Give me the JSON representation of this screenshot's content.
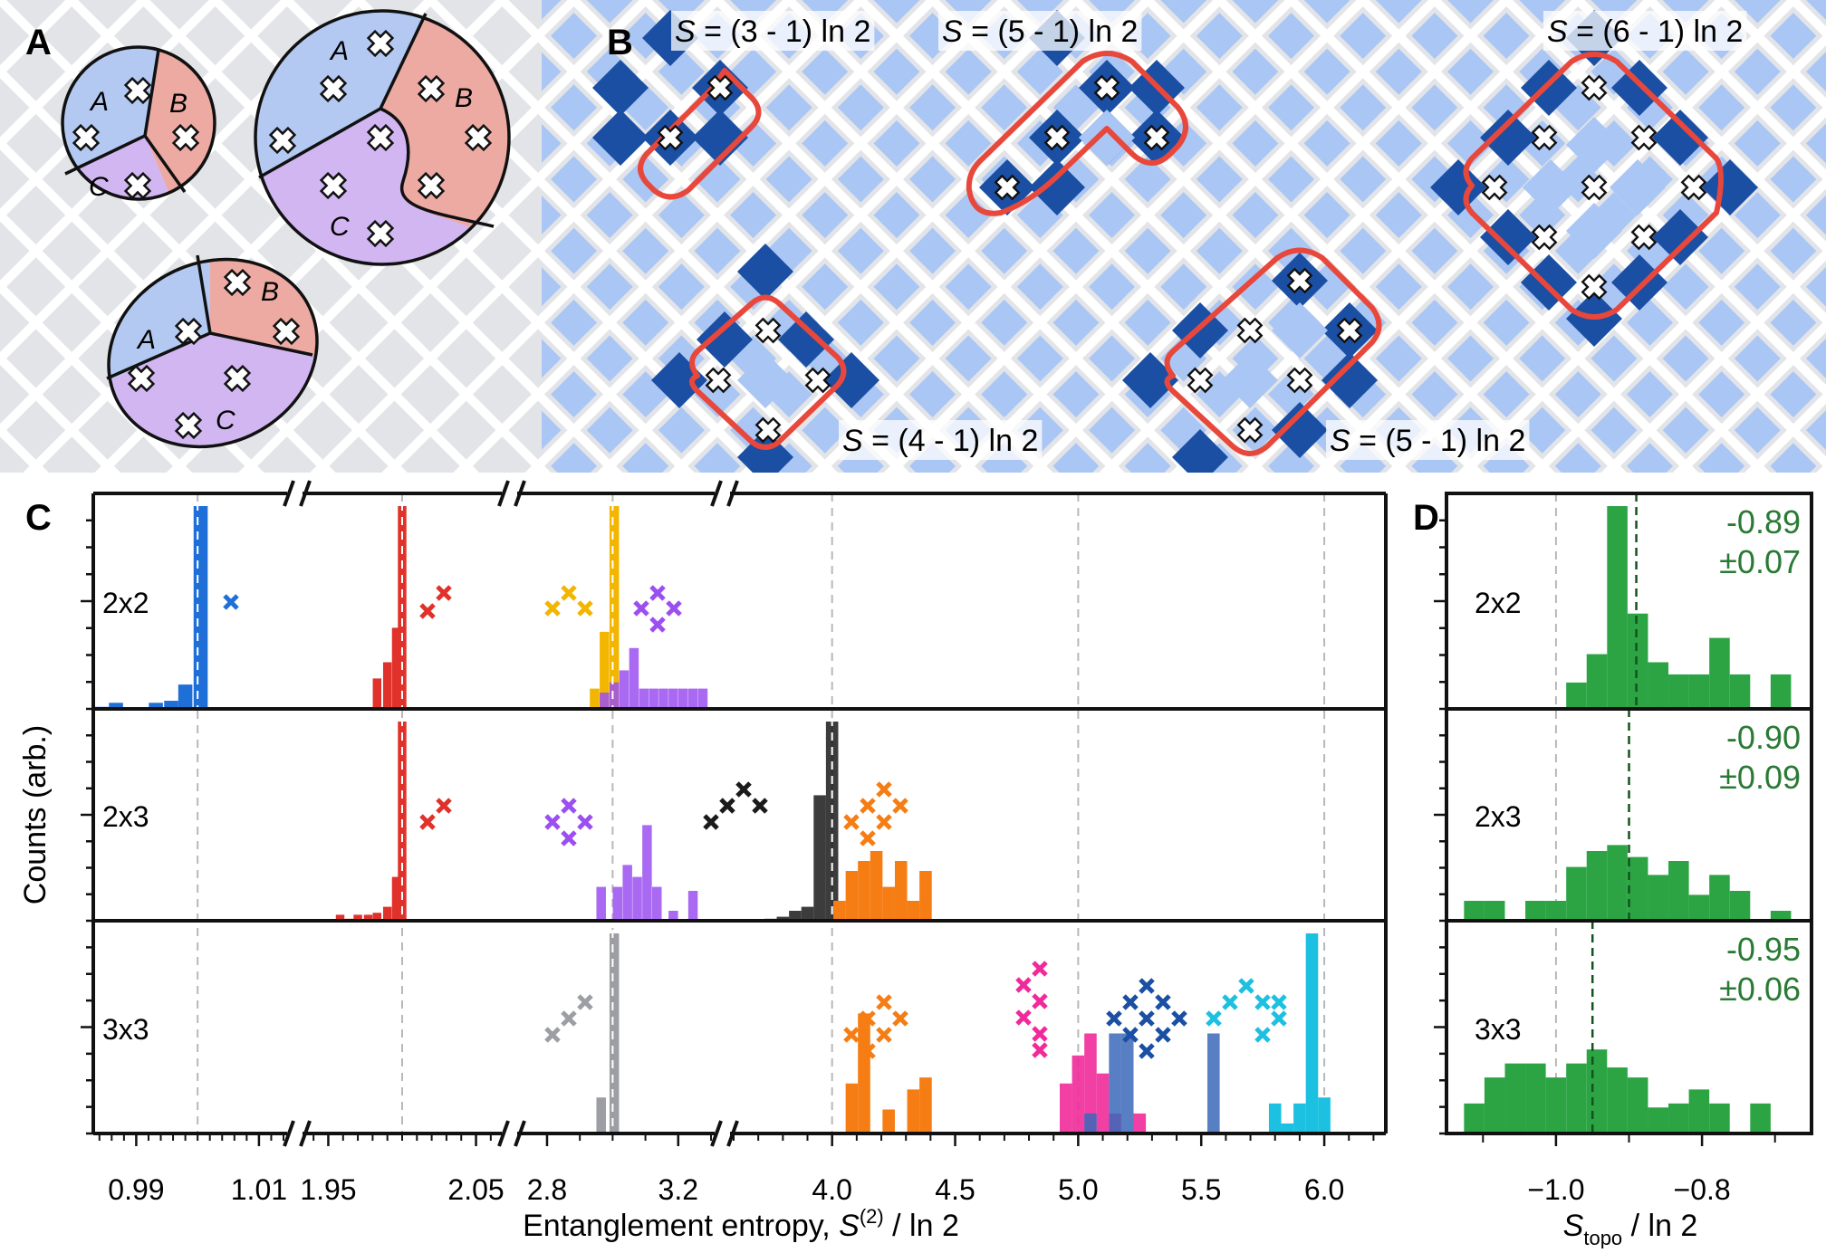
{
  "panel_labels": {
    "A": "A",
    "B": "B",
    "C": "C",
    "D": "D"
  },
  "panel_a": {
    "regions": {
      "a": "A",
      "b": "B",
      "c": "C"
    },
    "colors": {
      "a": "#b3c9f2",
      "b": "#ecaaa3",
      "c": "#d2b6f2"
    }
  },
  "panel_b": {
    "formulas": [
      {
        "italic": "S",
        "text": " = (3 - 1) ln 2"
      },
      {
        "italic": "S",
        "text": " = (5 - 1) ln 2"
      },
      {
        "italic": "S",
        "text": " = (6 - 1) ln 2"
      },
      {
        "italic": "S",
        "text": " = (4 - 1) ln 2"
      },
      {
        "italic": "S",
        "text": " = (5 - 1) ln 2"
      }
    ],
    "colors": {
      "lattice_light": "#aac6f4",
      "lattice_dark": "#1a4fa3",
      "outline": "#e8473b"
    }
  },
  "chart_data": [
    {
      "panel": "C",
      "type": "bar",
      "xlabel": "Entanglement entropy, S^(2) / ln 2",
      "ylabel": "Counts (arb.)",
      "rows": [
        "2x2",
        "2x3",
        "3x3"
      ],
      "grid": "vertical dashed reference lines at integer entropy values",
      "x_segments": [
        {
          "range": [
            0.983,
            1.014
          ],
          "ticks": [
            0.99,
            1.01
          ],
          "tick_labels": [
            "0.99",
            "1.01"
          ],
          "reference": 1.0
        },
        {
          "range": [
            1.935,
            2.065
          ],
          "ticks": [
            1.95,
            2.05
          ],
          "tick_labels": [
            "1.95",
            "2.05"
          ],
          "reference": 2.0
        },
        {
          "range": [
            2.72,
            3.3
          ],
          "ticks": [
            2.8,
            3.2
          ],
          "tick_labels": [
            "2.8",
            "3.2"
          ],
          "reference": 3.0
        },
        {
          "range": [
            3.6,
            6.25
          ],
          "ticks": [
            4.0,
            4.5,
            5.0,
            5.5,
            6.0
          ],
          "tick_labels": [
            "4.0",
            "4.5",
            "5.0",
            "5.5",
            "6.0"
          ],
          "references": [
            4.0,
            5.0,
            6.0
          ]
        }
      ],
      "series": [
        {
          "row": 0,
          "segment": 0,
          "color": "#1f6fd8",
          "alpha": 1,
          "bars": [
            [
              0.9843,
              0.01
            ],
            [
              0.9867,
              0.03
            ],
            [
              0.9932,
              0.03
            ],
            [
              0.9957,
              0.04
            ],
            [
              0.998,
              0.12
            ],
            [
              1.0005,
              1.0
            ]
          ]
        },
        {
          "row": 0,
          "segment": 1,
          "color": "#e0322b",
          "alpha": 1,
          "bars": [
            [
              1.983,
              0.15
            ],
            [
              1.99,
              0.23
            ],
            [
              1.996,
              0.4
            ],
            [
              2.0,
              1.0
            ]
          ]
        },
        {
          "row": 0,
          "segment": 2,
          "color": "#f2b500",
          "alpha": 1,
          "bars": [
            [
              2.945,
              0.1
            ],
            [
              2.975,
              0.38
            ],
            [
              3.005,
              1.0
            ]
          ]
        },
        {
          "row": 0,
          "segment": 2,
          "color": "#9b4ff0",
          "alpha": 0.85,
          "bars": [
            [
              2.975,
              0.08
            ],
            [
              3.005,
              0.13
            ],
            [
              3.035,
              0.19
            ],
            [
              3.065,
              0.3
            ],
            [
              3.095,
              0.1
            ],
            [
              3.125,
              0.1
            ],
            [
              3.155,
              0.1
            ],
            [
              3.185,
              0.1
            ],
            [
              3.215,
              0.1
            ],
            [
              3.245,
              0.1
            ],
            [
              3.275,
              0.1
            ]
          ]
        },
        {
          "row": 1,
          "segment": 1,
          "color": "#e0322b",
          "alpha": 1,
          "bars": [
            [
              1.958,
              0.03
            ],
            [
              1.964,
              0.01
            ],
            [
              1.97,
              0.03
            ],
            [
              1.977,
              0.03
            ],
            [
              1.983,
              0.04
            ],
            [
              1.99,
              0.07
            ],
            [
              1.996,
              0.22
            ],
            [
              2.0,
              1.0
            ]
          ]
        },
        {
          "row": 1,
          "segment": 2,
          "color": "#9b4ff0",
          "alpha": 0.85,
          "bars": [
            [
              2.965,
              0.17
            ],
            [
              3.015,
              0.17
            ],
            [
              3.045,
              0.28
            ],
            [
              3.075,
              0.22
            ],
            [
              3.105,
              0.48
            ],
            [
              3.135,
              0.17
            ],
            [
              3.185,
              0.05
            ],
            [
              3.245,
              0.15
            ]
          ]
        },
        {
          "row": 1,
          "segment": 3,
          "color": "#1a1a1a",
          "alpha": 0.85,
          "bars": [
            [
              3.75,
              0.01
            ],
            [
              3.8,
              0.02
            ],
            [
              3.85,
              0.05
            ],
            [
              3.9,
              0.07
            ],
            [
              3.95,
              0.63
            ],
            [
              4.0,
              1.0
            ]
          ]
        },
        {
          "row": 1,
          "segment": 3,
          "color": "#f57d14",
          "alpha": 1,
          "bars": [
            [
              4.03,
              0.1
            ],
            [
              4.08,
              0.25
            ],
            [
              4.13,
              0.3
            ],
            [
              4.18,
              0.35
            ],
            [
              4.23,
              0.17
            ],
            [
              4.28,
              0.3
            ],
            [
              4.33,
              0.1
            ],
            [
              4.38,
              0.25
            ]
          ]
        },
        {
          "row": 2,
          "segment": 2,
          "color": "#9c9ea3",
          "alpha": 1,
          "bars": [
            [
              2.965,
              0.18
            ],
            [
              3.005,
              1.0
            ]
          ]
        },
        {
          "row": 2,
          "segment": 3,
          "color": "#f57d14",
          "alpha": 1,
          "bars": [
            [
              4.08,
              0.25
            ],
            [
              4.13,
              0.6
            ],
            [
              4.23,
              0.12
            ],
            [
              4.33,
              0.22
            ],
            [
              4.38,
              0.28
            ]
          ]
        },
        {
          "row": 2,
          "segment": 3,
          "color": "#f02a9a",
          "alpha": 0.9,
          "bars": [
            [
              4.95,
              0.25
            ],
            [
              5.0,
              0.39
            ],
            [
              5.05,
              0.5
            ],
            [
              5.1,
              0.3
            ],
            [
              5.15,
              0.1
            ],
            [
              5.25,
              0.1
            ]
          ]
        },
        {
          "row": 2,
          "segment": 3,
          "color": "#3b68b8",
          "alpha": 0.85,
          "bars": [
            [
              5.05,
              0.1
            ],
            [
              5.15,
              0.5
            ],
            [
              5.2,
              0.5
            ],
            [
              5.55,
              0.5
            ]
          ]
        },
        {
          "row": 2,
          "segment": 3,
          "color": "#1cc0e0",
          "alpha": 1,
          "bars": [
            [
              5.8,
              0.15
            ],
            [
              5.85,
              0.05
            ],
            [
              5.9,
              0.15
            ],
            [
              5.95,
              1.0
            ],
            [
              6.0,
              0.18
            ]
          ]
        }
      ],
      "annotation_colors": [
        "#1f6fd8",
        "#e0322b",
        "#f2b500",
        "#9b4ff0",
        "#1a1a1a",
        "#f57d14",
        "#9c9ea3",
        "#f02a9a",
        "#1a4fa3",
        "#1cc0e0"
      ]
    },
    {
      "panel": "D",
      "type": "bar",
      "xlabel": "S_topo / ln 2",
      "rows": [
        "2x2",
        "2x3",
        "3x3"
      ],
      "xlim": [
        -1.15,
        -0.65
      ],
      "ticks": [
        -1.0,
        -0.8
      ],
      "tick_labels": [
        "−1.0",
        "−0.8"
      ],
      "reference": -1.0,
      "bin_width": 0.028,
      "color": "#2ca444",
      "series": [
        {
          "row": "2x2",
          "mean": -0.89,
          "uncertainty": 0.07,
          "mean_label": "-0.89",
          "unc_label": "±0.07",
          "bins": [
            [
              -0.972,
              0.13
            ],
            [
              -0.944,
              0.27
            ],
            [
              -0.916,
              1.0
            ],
            [
              -0.888,
              0.47
            ],
            [
              -0.86,
              0.23
            ],
            [
              -0.832,
              0.17
            ],
            [
              -0.804,
              0.17
            ],
            [
              -0.776,
              0.35
            ],
            [
              -0.748,
              0.17
            ],
            [
              -0.72,
              0.0
            ],
            [
              -0.692,
              0.17
            ]
          ]
        },
        {
          "row": "2x3",
          "mean": -0.9,
          "uncertainty": 0.09,
          "mean_label": "-0.90",
          "unc_label": "±0.09",
          "bins": [
            [
              -1.112,
              0.1
            ],
            [
              -1.084,
              0.1
            ],
            [
              -1.028,
              0.1
            ],
            [
              -1.0,
              0.1
            ],
            [
              -0.972,
              0.27
            ],
            [
              -0.944,
              0.35
            ],
            [
              -0.916,
              0.38
            ],
            [
              -0.888,
              0.32
            ],
            [
              -0.86,
              0.23
            ],
            [
              -0.832,
              0.3
            ],
            [
              -0.804,
              0.13
            ],
            [
              -0.776,
              0.23
            ],
            [
              -0.748,
              0.15
            ],
            [
              -0.72,
              0.0
            ],
            [
              -0.692,
              0.05
            ]
          ]
        },
        {
          "row": "3x3",
          "mean": -0.95,
          "uncertainty": 0.06,
          "mean_label": "-0.95",
          "unc_label": "±0.06",
          "bins": [
            [
              -1.112,
              0.15
            ],
            [
              -1.084,
              0.28
            ],
            [
              -1.056,
              0.35
            ],
            [
              -1.028,
              0.35
            ],
            [
              -1.0,
              0.28
            ],
            [
              -0.972,
              0.35
            ],
            [
              -0.944,
              0.42
            ],
            [
              -0.916,
              0.33
            ],
            [
              -0.888,
              0.28
            ],
            [
              -0.86,
              0.13
            ],
            [
              -0.832,
              0.15
            ],
            [
              -0.804,
              0.22
            ],
            [
              -0.776,
              0.15
            ],
            [
              -0.748,
              0.0
            ],
            [
              -0.72,
              0.15
            ]
          ]
        }
      ]
    }
  ]
}
